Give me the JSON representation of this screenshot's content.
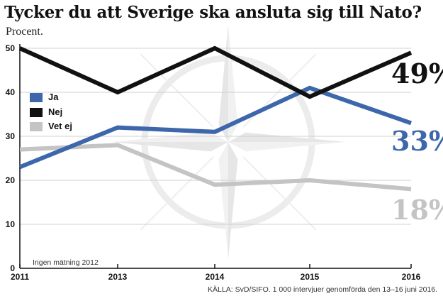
{
  "chart_data": {
    "type": "line",
    "title": "Tycker du att Sverige ska ansluta sig till Nato?",
    "subtitle": "Procent.",
    "x": [
      "2011",
      "2013",
      "2014",
      "2015",
      "2016"
    ],
    "ylim": [
      0,
      50
    ],
    "yticks": [
      0,
      10,
      20,
      30,
      40,
      50
    ],
    "grid": true,
    "legend_position": "left",
    "series": [
      {
        "name": "Ja",
        "values": [
          23,
          32,
          31,
          41,
          33
        ],
        "color": "#3d67aa",
        "end_label": "33%"
      },
      {
        "name": "Nej",
        "values": [
          50,
          40,
          50,
          39,
          49
        ],
        "color": "#111111",
        "end_label": "49%"
      },
      {
        "name": "Vet ej",
        "values": [
          27,
          28,
          19,
          20,
          18
        ],
        "color": "#c4c4c4",
        "end_label": "18%"
      }
    ],
    "annotation": "Ingen mätning 2012",
    "source": "KÄLLA: SvD/SIFO. 1 000 intervjuer genomförda den 13–16 juni 2016.",
    "background_icon": "nato-compass-star-icon"
  }
}
